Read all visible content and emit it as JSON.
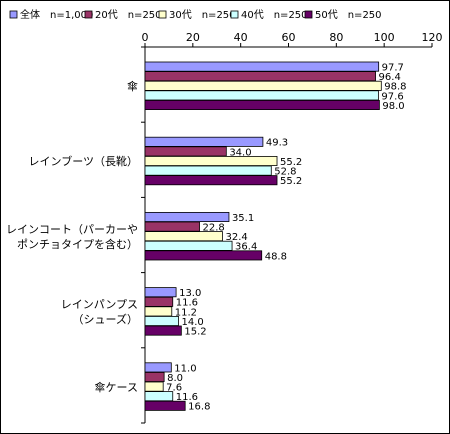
{
  "chart_data": {
    "type": "bar",
    "orientation": "horizontal",
    "xlim": [
      0,
      120
    ],
    "xticks": [
      0,
      20,
      40,
      60,
      80,
      100,
      120
    ],
    "grid": false,
    "legend_position": "top",
    "categories": [
      "傘",
      "レインブーツ（長靴）",
      "レインコート（パーカーや\nポンチョタイプを含む）",
      "レインパンプス\n（シューズ）",
      "傘ケース"
    ],
    "series": [
      {
        "name": "全体　n=1,000",
        "color": "#9999ff",
        "values": [
          97.7,
          49.3,
          35.1,
          13.0,
          11.0
        ]
      },
      {
        "name": "20代　n=250",
        "color": "#993366",
        "values": [
          96.4,
          34.0,
          22.8,
          11.6,
          8.0
        ]
      },
      {
        "name": "30代　n=250",
        "color": "#ffffcc",
        "values": [
          98.8,
          55.2,
          32.4,
          11.2,
          7.6
        ]
      },
      {
        "name": "40代　n=250",
        "color": "#ccffff",
        "values": [
          97.6,
          52.8,
          36.4,
          14.0,
          11.6
        ]
      },
      {
        "name": "50代　n=250",
        "color": "#660066",
        "values": [
          98.0,
          55.2,
          48.8,
          15.2,
          16.8
        ]
      }
    ]
  }
}
